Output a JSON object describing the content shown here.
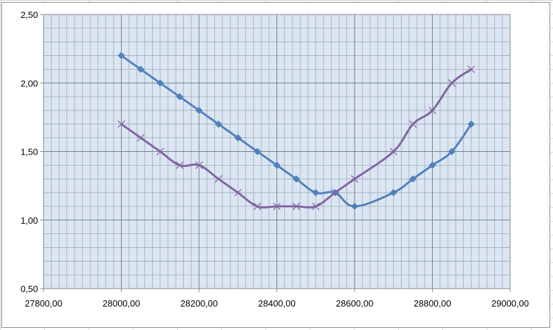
{
  "chart_data": {
    "type": "line",
    "title": "",
    "xlabel": "",
    "ylabel": "",
    "xlim": [
      27800,
      29000
    ],
    "ylim": [
      0.5,
      2.5
    ],
    "x_ticks": [
      "27800,00",
      "28000,00",
      "28200,00",
      "28400,00",
      "28600,00",
      "28800,00",
      "29000,00"
    ],
    "y_ticks": [
      "0,50",
      "1,00",
      "1,50",
      "2,00",
      "2,50"
    ],
    "grid": true,
    "legend": "none",
    "plot_background": "#dce6f2",
    "series": [
      {
        "color": "#4f81bd",
        "marker": "diamond",
        "points": [
          [
            28000,
            2.2
          ],
          [
            28050,
            2.1
          ],
          [
            28100,
            2.0
          ],
          [
            28150,
            1.9
          ],
          [
            28200,
            1.8
          ],
          [
            28250,
            1.7
          ],
          [
            28300,
            1.6
          ],
          [
            28350,
            1.5
          ],
          [
            28400,
            1.4
          ],
          [
            28450,
            1.3
          ],
          [
            28500,
            1.2
          ],
          [
            28550,
            1.2
          ],
          [
            28600,
            1.1
          ],
          [
            28700,
            1.2
          ],
          [
            28750,
            1.3
          ],
          [
            28800,
            1.4
          ],
          [
            28850,
            1.5
          ],
          [
            28900,
            1.7
          ]
        ]
      },
      {
        "color": "#8064a2",
        "marker": "x",
        "points": [
          [
            28000,
            1.7
          ],
          [
            28050,
            1.6
          ],
          [
            28100,
            1.5
          ],
          [
            28150,
            1.4
          ],
          [
            28200,
            1.4
          ],
          [
            28250,
            1.3
          ],
          [
            28300,
            1.2
          ],
          [
            28350,
            1.1
          ],
          [
            28400,
            1.1
          ],
          [
            28450,
            1.1
          ],
          [
            28500,
            1.1
          ],
          [
            28550,
            1.2
          ],
          [
            28600,
            1.3
          ],
          [
            28700,
            1.5
          ],
          [
            28750,
            1.7
          ],
          [
            28800,
            1.8
          ],
          [
            28850,
            2.0
          ],
          [
            28900,
            2.1
          ]
        ]
      }
    ]
  }
}
